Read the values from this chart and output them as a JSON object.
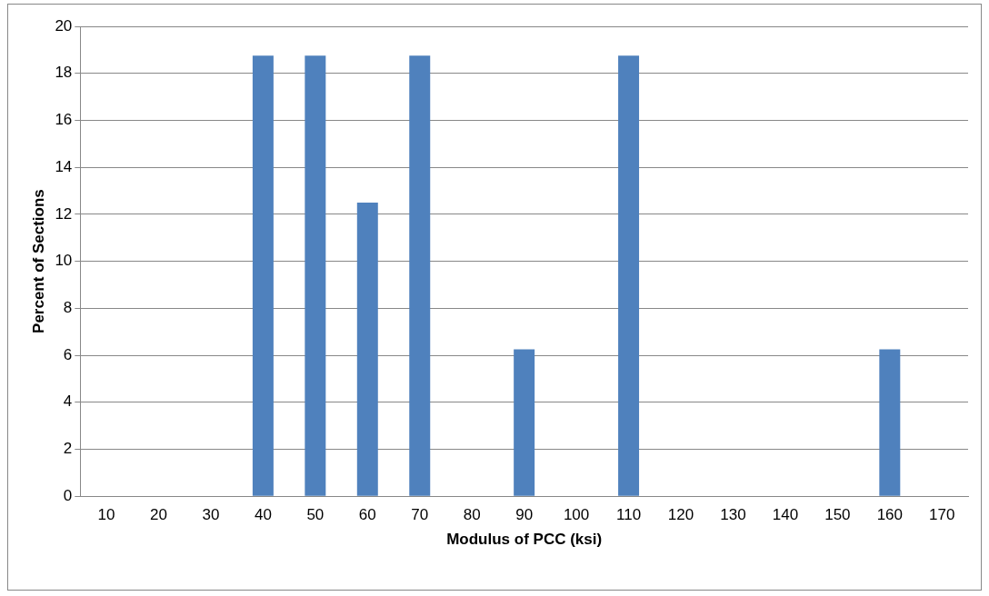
{
  "chart_data": {
    "type": "bar",
    "xlabel": "Modulus of PCC (ksi)",
    "ylabel": "Percent of Sections",
    "categories": [
      "10",
      "20",
      "30",
      "40",
      "50",
      "60",
      "70",
      "80",
      "90",
      "100",
      "110",
      "120",
      "130",
      "140",
      "150",
      "160",
      "170"
    ],
    "values": [
      0,
      0,
      0,
      18.75,
      18.75,
      12.5,
      18.75,
      0,
      6.25,
      0,
      18.75,
      0,
      0,
      0,
      0,
      6.25,
      0
    ],
    "color": "#4f81bd",
    "ylim": [
      0,
      20
    ],
    "yticks": [
      0,
      2,
      4,
      6,
      8,
      10,
      12,
      14,
      16,
      18,
      20
    ],
    "grid": "y",
    "legend": false
  }
}
